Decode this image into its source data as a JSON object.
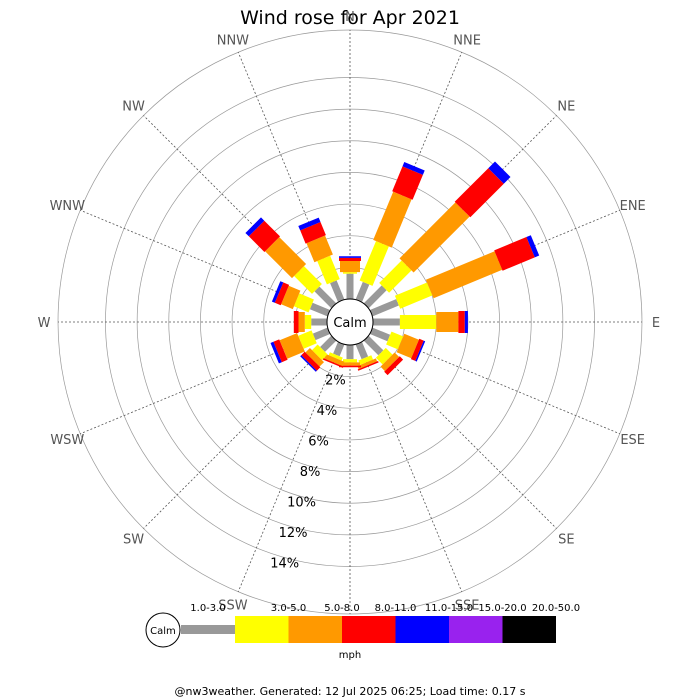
{
  "chart_data": {
    "type": "wind-rose",
    "title": "Wind rose for Apr 2021",
    "directions": [
      "N",
      "NNE",
      "NE",
      "ENE",
      "E",
      "ESE",
      "SE",
      "SSE",
      "S",
      "SSW",
      "SW",
      "WSW",
      "W",
      "WNW",
      "NW",
      "NNW"
    ],
    "radial_labels": [
      "2%",
      "4%",
      "6%",
      "8%",
      "10%",
      "12%",
      "14%"
    ],
    "radial_max": 17,
    "calm_label": "Calm",
    "unit": "mph",
    "speed_bins": [
      {
        "label": "1.0-3.0",
        "color": "#999999"
      },
      {
        "label": "3.0-5.0",
        "color": "#ffff00"
      },
      {
        "label": "5.0-8.0",
        "color": "#ff9900"
      },
      {
        "label": "8.0-11.0",
        "color": "#ff0000"
      },
      {
        "label": "11.0-15.0",
        "color": "#0000ff"
      },
      {
        "label": "15.0-20.0",
        "color": "#9922ee"
      },
      {
        "label": "20.0-50.0",
        "color": "#000000"
      }
    ],
    "series": [
      {
        "direction": "N",
        "values": [
          1.6,
          0.1,
          0.7,
          0.2,
          0.1,
          0,
          0
        ]
      },
      {
        "direction": "NNE",
        "values": [
          1.2,
          2.7,
          3.3,
          1.7,
          0.3,
          0,
          0
        ]
      },
      {
        "direction": "NE",
        "values": [
          1.6,
          2.0,
          5.0,
          3.0,
          0.6,
          0,
          0
        ]
      },
      {
        "direction": "ENE",
        "values": [
          1.8,
          2.2,
          4.7,
          2.2,
          0.3,
          0,
          0
        ]
      },
      {
        "direction": "E",
        "values": [
          1.7,
          2.3,
          1.4,
          0.4,
          0.2,
          0,
          0
        ]
      },
      {
        "direction": "ESE",
        "values": [
          1.2,
          0.8,
          1.0,
          0.3,
          0.1,
          0,
          0
        ]
      },
      {
        "direction": "SE",
        "values": [
          1.3,
          0.6,
          0.4,
          0.3,
          0,
          0,
          0
        ]
      },
      {
        "direction": "SSE",
        "values": [
          1.0,
          0.3,
          0.2,
          0.1,
          0,
          0,
          0
        ]
      },
      {
        "direction": "S",
        "values": [
          0.9,
          0.2,
          0.2,
          0.1,
          0,
          0,
          0
        ]
      },
      {
        "direction": "SSW",
        "values": [
          0.8,
          0.2,
          0.3,
          0.1,
          0,
          0,
          0
        ]
      },
      {
        "direction": "SW",
        "values": [
          1.0,
          0.5,
          0.4,
          0.3,
          0.1,
          0,
          0
        ]
      },
      {
        "direction": "WSW",
        "values": [
          1.0,
          0.9,
          1.2,
          0.4,
          0.2,
          0,
          0
        ]
      },
      {
        "direction": "W",
        "values": [
          1.0,
          0.4,
          0.4,
          0.3,
          0,
          0,
          0
        ]
      },
      {
        "direction": "WNW",
        "values": [
          1.2,
          1.0,
          0.8,
          0.4,
          0.2,
          0,
          0
        ]
      },
      {
        "direction": "NW",
        "values": [
          1.5,
          1.6,
          2.4,
          1.4,
          0.3,
          0,
          0
        ]
      },
      {
        "direction": "NNW",
        "values": [
          1.3,
          1.6,
          1.3,
          0.9,
          0.3,
          0,
          0
        ]
      }
    ]
  },
  "footer": "@nw3weather. Generated: 12 Jul 2025 06:25; Load time: 0.17 s"
}
